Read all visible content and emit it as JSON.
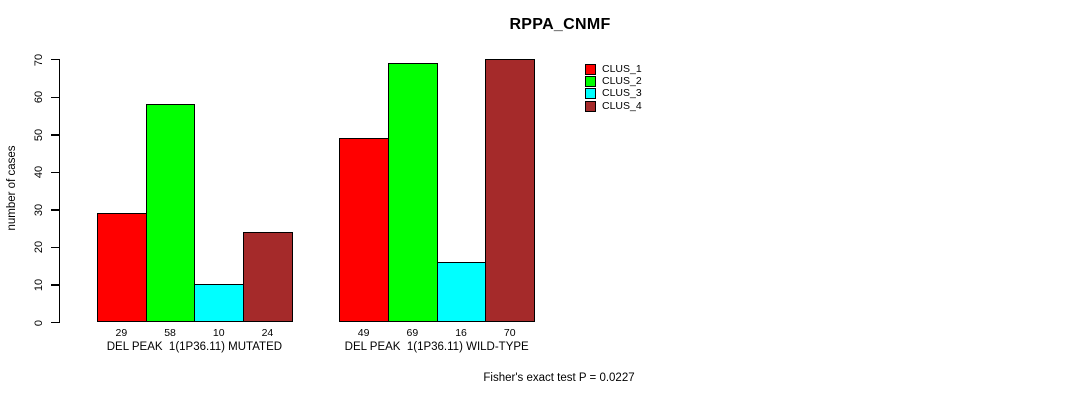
{
  "chart_data": {
    "type": "bar",
    "title": "RPPA_CNMF",
    "ylabel": "number of cases",
    "xlabel": "",
    "ylim": [
      0,
      70
    ],
    "yticks": [
      0,
      10,
      20,
      30,
      40,
      50,
      60,
      70
    ],
    "grid": false,
    "legend_position": "top-right",
    "categories": [
      "DEL PEAK  1(1P36.11) MUTATED",
      "DEL PEAK  1(1P36.11) WILD-TYPE"
    ],
    "series": [
      {
        "name": "CLUS_1",
        "color": "#ff0000",
        "values": [
          29,
          49
        ]
      },
      {
        "name": "CLUS_2",
        "color": "#00ff00",
        "values": [
          58,
          69
        ]
      },
      {
        "name": "CLUS_3",
        "color": "#00ffff",
        "values": [
          10,
          16
        ]
      },
      {
        "name": "CLUS_4",
        "color": "#a52a2a",
        "values": [
          24,
          70
        ]
      }
    ],
    "bar_value_labels_shown": true,
    "annotation": "Fisher's exact test P = 0.0227"
  },
  "colors": {
    "axis": "#000000",
    "background": "#ffffff",
    "clus_1": "#ff0000",
    "clus_2": "#00ff00",
    "clus_3": "#00ffff",
    "clus_4": "#a52a2a"
  }
}
